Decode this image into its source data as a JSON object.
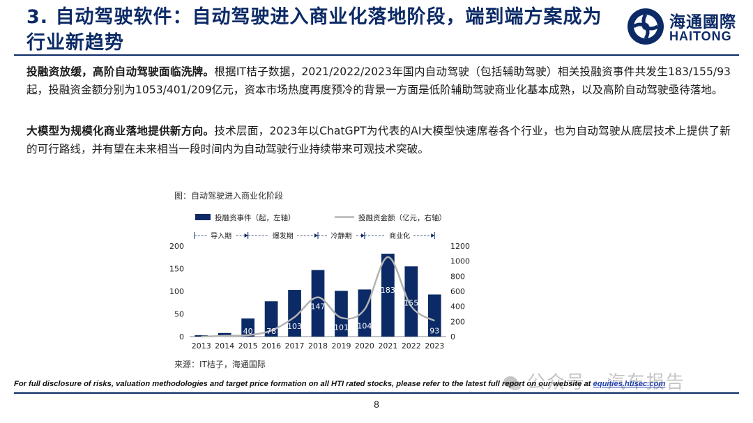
{
  "header": {
    "title": "3. 自动驾驶软件：自动驾驶进入商业化落地阶段，端到端方案成为行业新趋势",
    "logo_cn": "海通國際",
    "logo_en": "HAITONG"
  },
  "body": {
    "paragraph1": {
      "lead": "投融资放缓，高阶自动驾驶面临洗牌。",
      "text": "根据IT桔子数据，2021/2022/2023年国内自动驾驶（包括辅助驾驶）相关投融资事件共发生183/155/93起，投融资金额分别为1053/401/209亿元，资本市场热度再度预冷的背景一方面是低阶辅助驾驶商业化基本成熟，以及高阶自动驾驶亟待落地。"
    },
    "paragraph2": {
      "lead": "大模型为规模化商业落地提供新方向。",
      "text": "技术层面，2023年以ChatGPT为代表的AI大模型快速席卷各个行业，也为自动驾驶从底层技术上提供了新的可行路线，并有望在未来相当一段时间内为自动驾驶行业持续带来可观技术突破。"
    }
  },
  "chart": {
    "caption": "图：自动驾驶进入商业化阶段",
    "source": "来源：IT桔子，海通国际"
  },
  "chart_data": {
    "type": "bar",
    "categories": [
      "2013",
      "2014",
      "2015",
      "2016",
      "2017",
      "2018",
      "2019",
      "2020",
      "2021",
      "2022",
      "2023"
    ],
    "series": [
      {
        "name": "投融资事件（起，左轴）",
        "type": "bar",
        "axis": "left",
        "color": "#0c2a66",
        "values": [
          3,
          8,
          40,
          78,
          103,
          147,
          101,
          104,
          183,
          155,
          93
        ],
        "data_labels": [
          "",
          "",
          "40",
          "78",
          "103",
          "147",
          "101",
          "104",
          "183",
          "155",
          "93"
        ]
      },
      {
        "name": "投融资金额（亿元，右轴）",
        "type": "line",
        "axis": "right",
        "color": "#b3b3b3",
        "values": [
          0,
          10,
          20,
          80,
          260,
          520,
          250,
          360,
          1053,
          401,
          209
        ]
      }
    ],
    "phases": [
      {
        "label": "导入期",
        "from": "2013",
        "to": "2015"
      },
      {
        "label": "爆发期",
        "from": "2015",
        "to": "2018"
      },
      {
        "label": "冷静期",
        "from": "2018",
        "to": "2020"
      },
      {
        "label": "商业化",
        "from": "2020",
        "to": "2023"
      }
    ],
    "left_axis": {
      "min": 0,
      "max": 200,
      "ticks": [
        "0",
        "50",
        "100",
        "150",
        "200"
      ]
    },
    "right_axis": {
      "min": 0,
      "max": 1200,
      "ticks": [
        "0",
        "200",
        "400",
        "600",
        "800",
        "1000",
        "1200"
      ]
    },
    "legend_position": "top",
    "grid": false
  },
  "watermark": {
    "text": "公众号 · 汽车报告"
  },
  "footer": {
    "disclaimer": "For full disclosure of risks, valuation methodologies and target price formation on all HTI rated stocks, please refer to the latest full report on our website at ",
    "link": "equities.htisec.com",
    "page": "8"
  }
}
